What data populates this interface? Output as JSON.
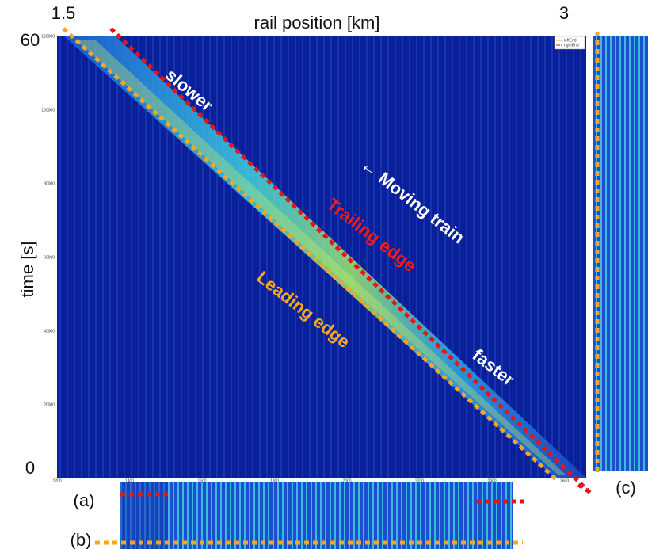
{
  "figure": {
    "x_axis": {
      "title": "rail position [km]",
      "start_label": "1.5",
      "end_label": "3",
      "tick_labels": [
        "1200",
        "1400",
        "1600",
        "1800",
        "2000",
        "2200",
        "2400",
        "2600"
      ]
    },
    "y_axis": {
      "title": "time [s]",
      "top_label": "60",
      "bottom_label": "0",
      "tick_labels": [
        "120000",
        "100000",
        "80000",
        "60000",
        "40000",
        "20000"
      ]
    },
    "legend": [
      "leftEnd",
      "rightEnd"
    ],
    "annotations": {
      "slower": "slower",
      "moving": "← Moving train",
      "trailing": "Trailing edge",
      "leading": "Leading edge",
      "faster": "faster"
    },
    "panels": {
      "a": "(a)",
      "b": "(b)",
      "c": "(c)"
    }
  }
}
